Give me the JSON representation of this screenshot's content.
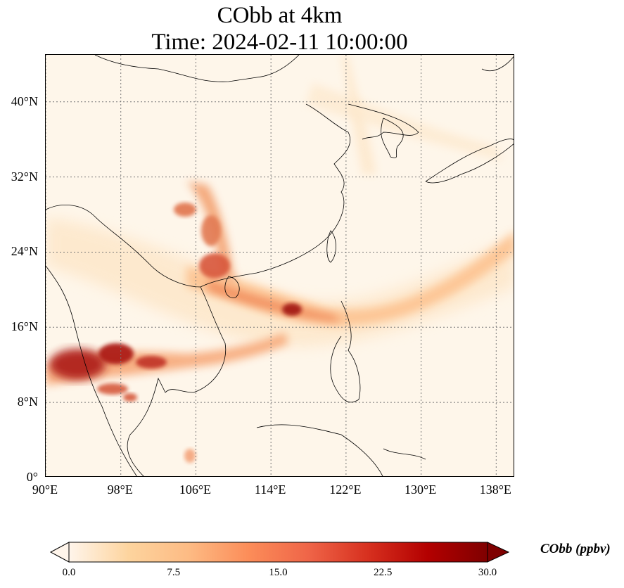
{
  "title": {
    "line1": "CObb at 4km",
    "line2": "Time: 2024-02-11 10:00:00"
  },
  "map": {
    "extent": {
      "lon_min": 90,
      "lon_max": 140,
      "lat_min": 0,
      "lat_max": 45
    },
    "grid": true,
    "lat_ticks": [
      {
        "value": 0,
        "label": "0°"
      },
      {
        "value": 8,
        "label": "8°N"
      },
      {
        "value": 16,
        "label": "16°N"
      },
      {
        "value": 24,
        "label": "24°N"
      },
      {
        "value": 32,
        "label": "32°N"
      },
      {
        "value": 40,
        "label": "40°N"
      }
    ],
    "lon_ticks": [
      {
        "value": 90,
        "label": "90°E"
      },
      {
        "value": 98,
        "label": "98°E"
      },
      {
        "value": 106,
        "label": "106°E"
      },
      {
        "value": 114,
        "label": "114°E"
      },
      {
        "value": 122,
        "label": "122°E"
      },
      {
        "value": 130,
        "label": "130°E"
      },
      {
        "value": 138,
        "label": "138°E"
      }
    ]
  },
  "colorbar": {
    "label": "CObb (ppbv)",
    "ticks": [
      "0.0",
      "7.5",
      "15.0",
      "22.5",
      "30.0"
    ],
    "min": 0,
    "max": 30,
    "colors": [
      "#fff5eb",
      "#fdd49e",
      "#fdbb84",
      "#fc8d59",
      "#ef6548",
      "#d7301f",
      "#b30000",
      "#7f0000"
    ]
  }
}
